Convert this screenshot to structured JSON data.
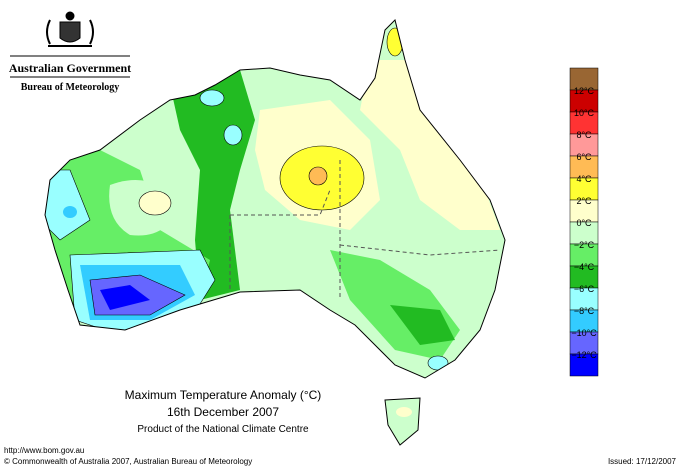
{
  "header": {
    "title": "Australian Government",
    "subtitle": "Bureau of Meteorology"
  },
  "map": {
    "title": "Maximum Temperature Anomaly (°C)",
    "date": "16th December 2007",
    "source": "Product of the National Climate Centre"
  },
  "legend": {
    "colors": [
      "#996633",
      "#cc0000",
      "#ff3333",
      "#ff9999",
      "#ffbb55",
      "#ffff33",
      "#ffffcc",
      "#ccffcc",
      "#66ee66",
      "#22bb22",
      "#99ffff",
      "#33ccff",
      "#6666ff",
      "#0000ff"
    ],
    "labels": [
      "12°C",
      "10°C",
      "8°C",
      "6°C",
      "4°C",
      "2°C",
      "0°C",
      "−2°C",
      "−4°C",
      "−6°C",
      "−8°C",
      "−10°C",
      "−12°C"
    ]
  },
  "footer": {
    "url": "http://www.bom.gov.au",
    "copyright": "© Commonwealth of Australia 2007, Australian Bureau of Meteorology",
    "issued": "Issued: 17/12/2007"
  }
}
